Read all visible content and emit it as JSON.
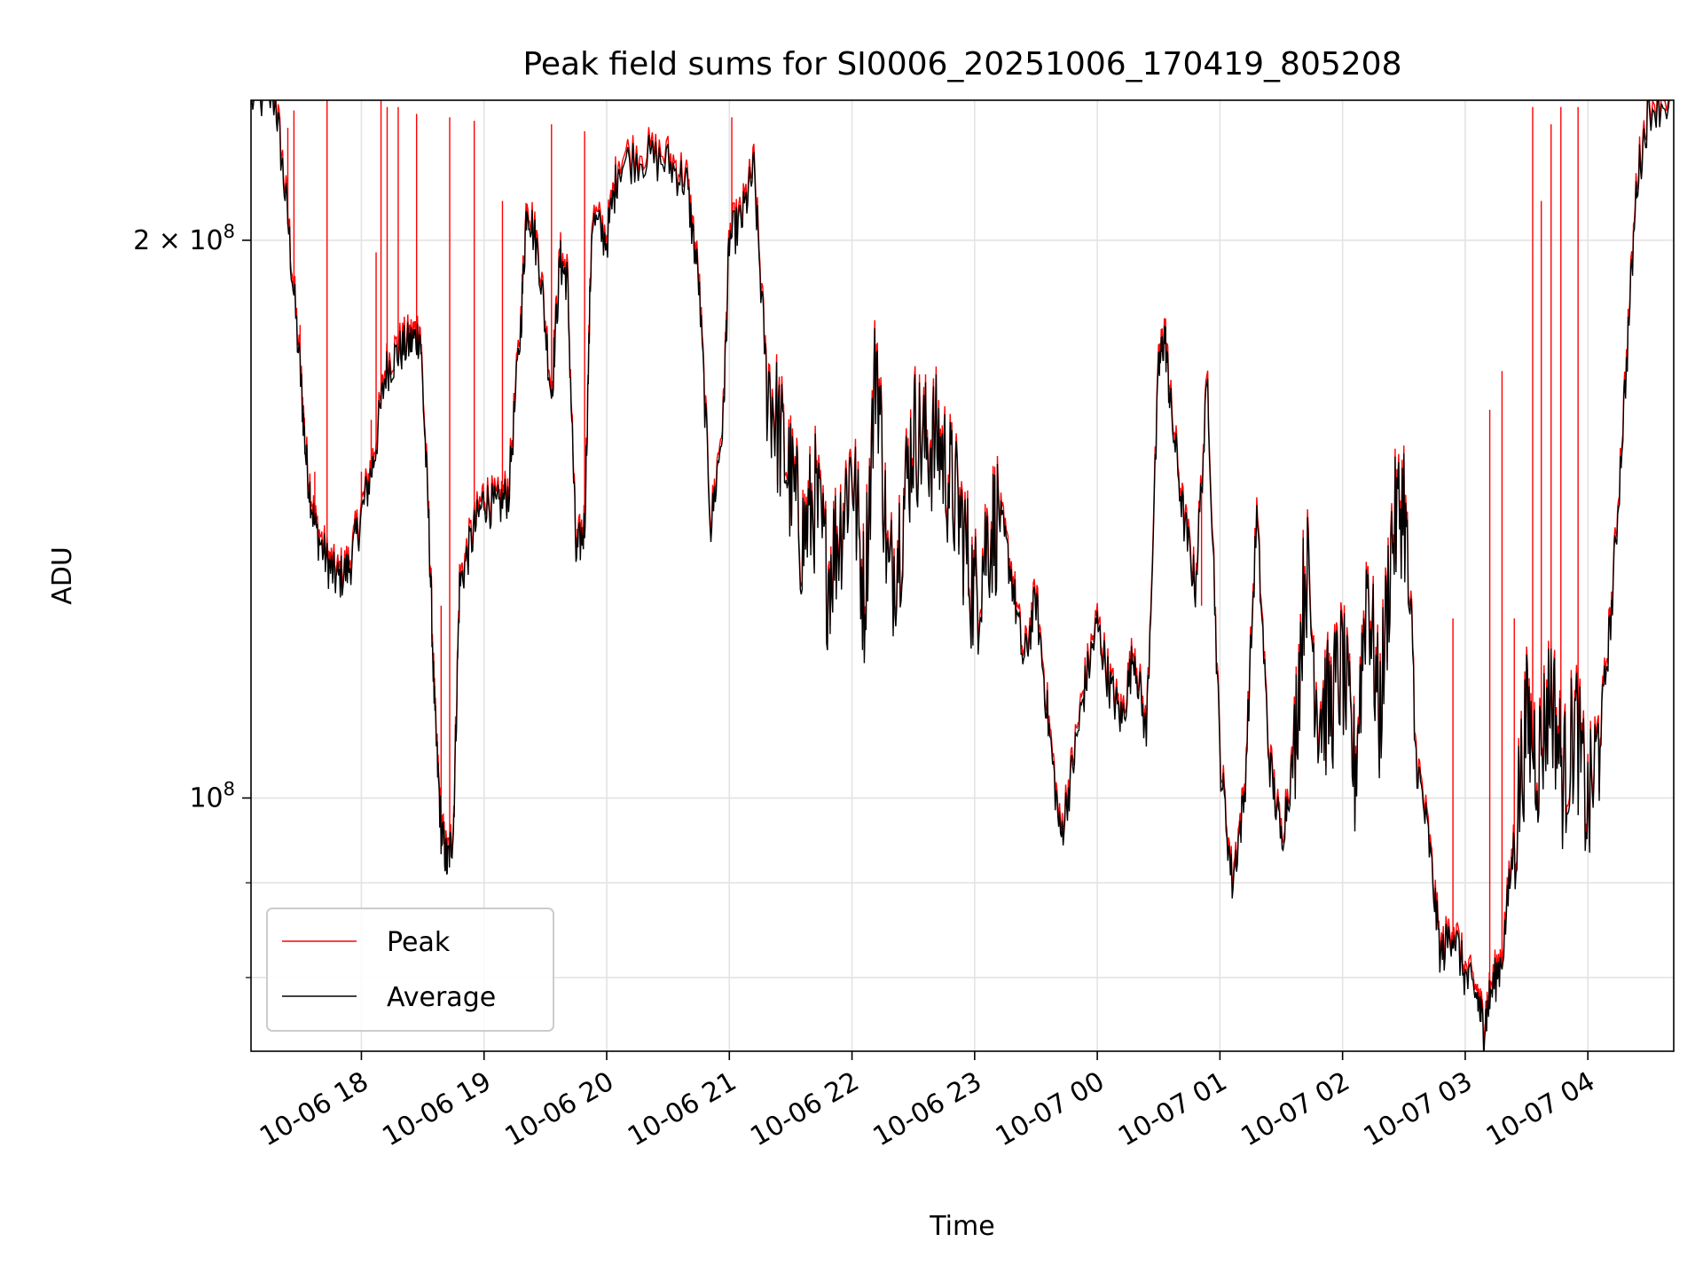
{
  "chart_data": {
    "type": "line",
    "title": "Peak field sums for SI0006_20251006_170419_805208",
    "xlabel": "Time",
    "ylabel": "ADU",
    "yscale": "log",
    "ylim": [
      73000000,
      238000000
    ],
    "xlim_hours": [
      17.1,
      28.7
    ],
    "grid": true,
    "legend_position": "lower-left",
    "x_ticks": [
      {
        "hour": 18,
        "label": "10-06 18"
      },
      {
        "hour": 19,
        "label": "10-06 19"
      },
      {
        "hour": 20,
        "label": "10-06 20"
      },
      {
        "hour": 21,
        "label": "10-06 21"
      },
      {
        "hour": 22,
        "label": "10-06 22"
      },
      {
        "hour": 23,
        "label": "10-06 23"
      },
      {
        "hour": 24,
        "label": "10-07 00"
      },
      {
        "hour": 25,
        "label": "10-07 01"
      },
      {
        "hour": 26,
        "label": "10-07 02"
      },
      {
        "hour": 27,
        "label": "10-07 03"
      },
      {
        "hour": 28,
        "label": "10-07 04"
      }
    ],
    "y_major_ticks": [
      {
        "value": 100000000,
        "base": "10",
        "exp": "8",
        "coef": ""
      },
      {
        "value": 200000000,
        "base": "10",
        "exp": "8",
        "coef": "2 × "
      }
    ],
    "y_minor_gridlines": [
      80000000,
      90000000
    ],
    "series": [
      {
        "name": "Peak",
        "color": "#ff0000",
        "spikes": [
          {
            "hour": 17.4,
            "value": 230000000
          },
          {
            "hour": 17.45,
            "value": 235000000
          },
          {
            "hour": 17.5,
            "value": 180000000
          },
          {
            "hour": 17.62,
            "value": 150000000
          },
          {
            "hour": 17.72,
            "value": 238000000
          },
          {
            "hour": 18.0,
            "value": 150000000
          },
          {
            "hour": 18.08,
            "value": 160000000
          },
          {
            "hour": 18.12,
            "value": 197000000
          },
          {
            "hour": 18.16,
            "value": 238000000
          },
          {
            "hour": 18.21,
            "value": 236000000
          },
          {
            "hour": 18.3,
            "value": 236000000
          },
          {
            "hour": 18.45,
            "value": 234000000
          },
          {
            "hour": 18.65,
            "value": 127000000
          },
          {
            "hour": 18.72,
            "value": 233000000
          },
          {
            "hour": 18.92,
            "value": 232000000
          },
          {
            "hour": 19.15,
            "value": 210000000
          },
          {
            "hour": 19.55,
            "value": 231000000
          },
          {
            "hour": 19.82,
            "value": 229000000
          },
          {
            "hour": 21.02,
            "value": 233000000
          },
          {
            "hour": 24.85,
            "value": 127000000
          },
          {
            "hour": 26.9,
            "value": 125000000
          },
          {
            "hour": 27.2,
            "value": 162000000
          },
          {
            "hour": 27.3,
            "value": 170000000
          },
          {
            "hour": 27.4,
            "value": 125000000
          },
          {
            "hour": 27.55,
            "value": 236000000
          },
          {
            "hour": 27.62,
            "value": 210000000
          },
          {
            "hour": 27.7,
            "value": 231000000
          },
          {
            "hour": 27.78,
            "value": 236000000
          },
          {
            "hour": 27.92,
            "value": 236000000
          }
        ]
      },
      {
        "name": "Average",
        "color": "#000000",
        "points": [
          [
            17.1,
            238000000
          ],
          [
            17.3,
            238000000
          ],
          [
            17.4,
            205000000
          ],
          [
            17.5,
            170000000
          ],
          [
            17.55,
            152000000
          ],
          [
            17.62,
            140000000
          ],
          [
            17.72,
            134000000
          ],
          [
            17.8,
            131000000
          ],
          [
            17.9,
            133000000
          ],
          [
            18.0,
            142000000
          ],
          [
            18.1,
            152000000
          ],
          [
            18.2,
            170000000
          ],
          [
            18.3,
            174000000
          ],
          [
            18.4,
            176000000
          ],
          [
            18.48,
            178000000
          ],
          [
            18.55,
            140000000
          ],
          [
            18.6,
            110000000
          ],
          [
            18.65,
            96000000
          ],
          [
            18.7,
            92000000
          ],
          [
            18.75,
            96000000
          ],
          [
            18.8,
            130000000
          ],
          [
            18.9,
            138000000
          ],
          [
            19.0,
            145000000
          ],
          [
            19.1,
            143000000
          ],
          [
            19.2,
            146000000
          ],
          [
            19.3,
            180000000
          ],
          [
            19.35,
            210000000
          ],
          [
            19.45,
            195000000
          ],
          [
            19.55,
            165000000
          ],
          [
            19.62,
            195000000
          ],
          [
            19.68,
            190000000
          ],
          [
            19.75,
            135000000
          ],
          [
            19.82,
            140000000
          ],
          [
            19.88,
            205000000
          ],
          [
            20.0,
            200000000
          ],
          [
            20.1,
            220000000
          ],
          [
            20.3,
            222000000
          ],
          [
            20.5,
            220000000
          ],
          [
            20.65,
            215000000
          ],
          [
            20.75,
            190000000
          ],
          [
            20.85,
            140000000
          ],
          [
            20.95,
            160000000
          ],
          [
            21.0,
            200000000
          ],
          [
            21.1,
            205000000
          ],
          [
            21.2,
            218000000
          ],
          [
            21.3,
            170000000
          ],
          [
            21.4,
            158000000
          ],
          [
            21.5,
            148000000
          ],
          [
            21.6,
            138000000
          ],
          [
            21.7,
            145000000
          ],
          [
            21.8,
            132000000
          ],
          [
            21.9,
            140000000
          ],
          [
            22.0,
            152000000
          ],
          [
            22.1,
            128000000
          ],
          [
            22.2,
            175000000
          ],
          [
            22.3,
            130000000
          ],
          [
            22.4,
            140000000
          ],
          [
            22.5,
            158000000
          ],
          [
            22.6,
            155000000
          ],
          [
            22.7,
            156000000
          ],
          [
            22.8,
            148000000
          ],
          [
            22.9,
            140000000
          ],
          [
            23.0,
            128000000
          ],
          [
            23.1,
            138000000
          ],
          [
            23.2,
            142000000
          ],
          [
            23.3,
            132000000
          ],
          [
            23.4,
            118000000
          ],
          [
            23.5,
            128000000
          ],
          [
            23.6,
            110000000
          ],
          [
            23.7,
            95000000
          ],
          [
            23.8,
            104000000
          ],
          [
            23.9,
            115000000
          ],
          [
            24.0,
            124000000
          ],
          [
            24.1,
            115000000
          ],
          [
            24.2,
            110000000
          ],
          [
            24.3,
            120000000
          ],
          [
            24.4,
            108000000
          ],
          [
            24.5,
            170000000
          ],
          [
            24.55,
            178000000
          ],
          [
            24.6,
            162000000
          ],
          [
            24.7,
            142000000
          ],
          [
            24.8,
            130000000
          ],
          [
            24.9,
            168000000
          ],
          [
            25.0,
            105000000
          ],
          [
            25.1,
            90000000
          ],
          [
            25.2,
            100000000
          ],
          [
            25.3,
            142000000
          ],
          [
            25.4,
            105000000
          ],
          [
            25.5,
            95000000
          ],
          [
            25.6,
            105000000
          ],
          [
            25.7,
            135000000
          ],
          [
            25.8,
            112000000
          ],
          [
            25.9,
            112000000
          ],
          [
            26.0,
            118000000
          ],
          [
            26.1,
            103000000
          ],
          [
            26.2,
            132000000
          ],
          [
            26.3,
            110000000
          ],
          [
            26.4,
            138000000
          ],
          [
            26.5,
            146000000
          ],
          [
            26.6,
            105000000
          ],
          [
            26.7,
            95000000
          ],
          [
            26.8,
            82000000
          ],
          [
            26.9,
            85000000
          ],
          [
            27.0,
            80000000
          ],
          [
            27.1,
            78000000
          ],
          [
            27.15,
            75000000
          ],
          [
            27.2,
            78000000
          ],
          [
            27.3,
            82000000
          ],
          [
            27.4,
            95000000
          ],
          [
            27.5,
            110000000
          ],
          [
            27.6,
            105000000
          ],
          [
            27.7,
            115000000
          ],
          [
            27.8,
            102000000
          ],
          [
            27.9,
            110000000
          ],
          [
            28.0,
            98000000
          ],
          [
            28.1,
            108000000
          ],
          [
            28.2,
            128000000
          ],
          [
            28.3,
            165000000
          ],
          [
            28.4,
            215000000
          ],
          [
            28.5,
            236000000
          ],
          [
            28.7,
            238000000
          ]
        ]
      }
    ]
  }
}
